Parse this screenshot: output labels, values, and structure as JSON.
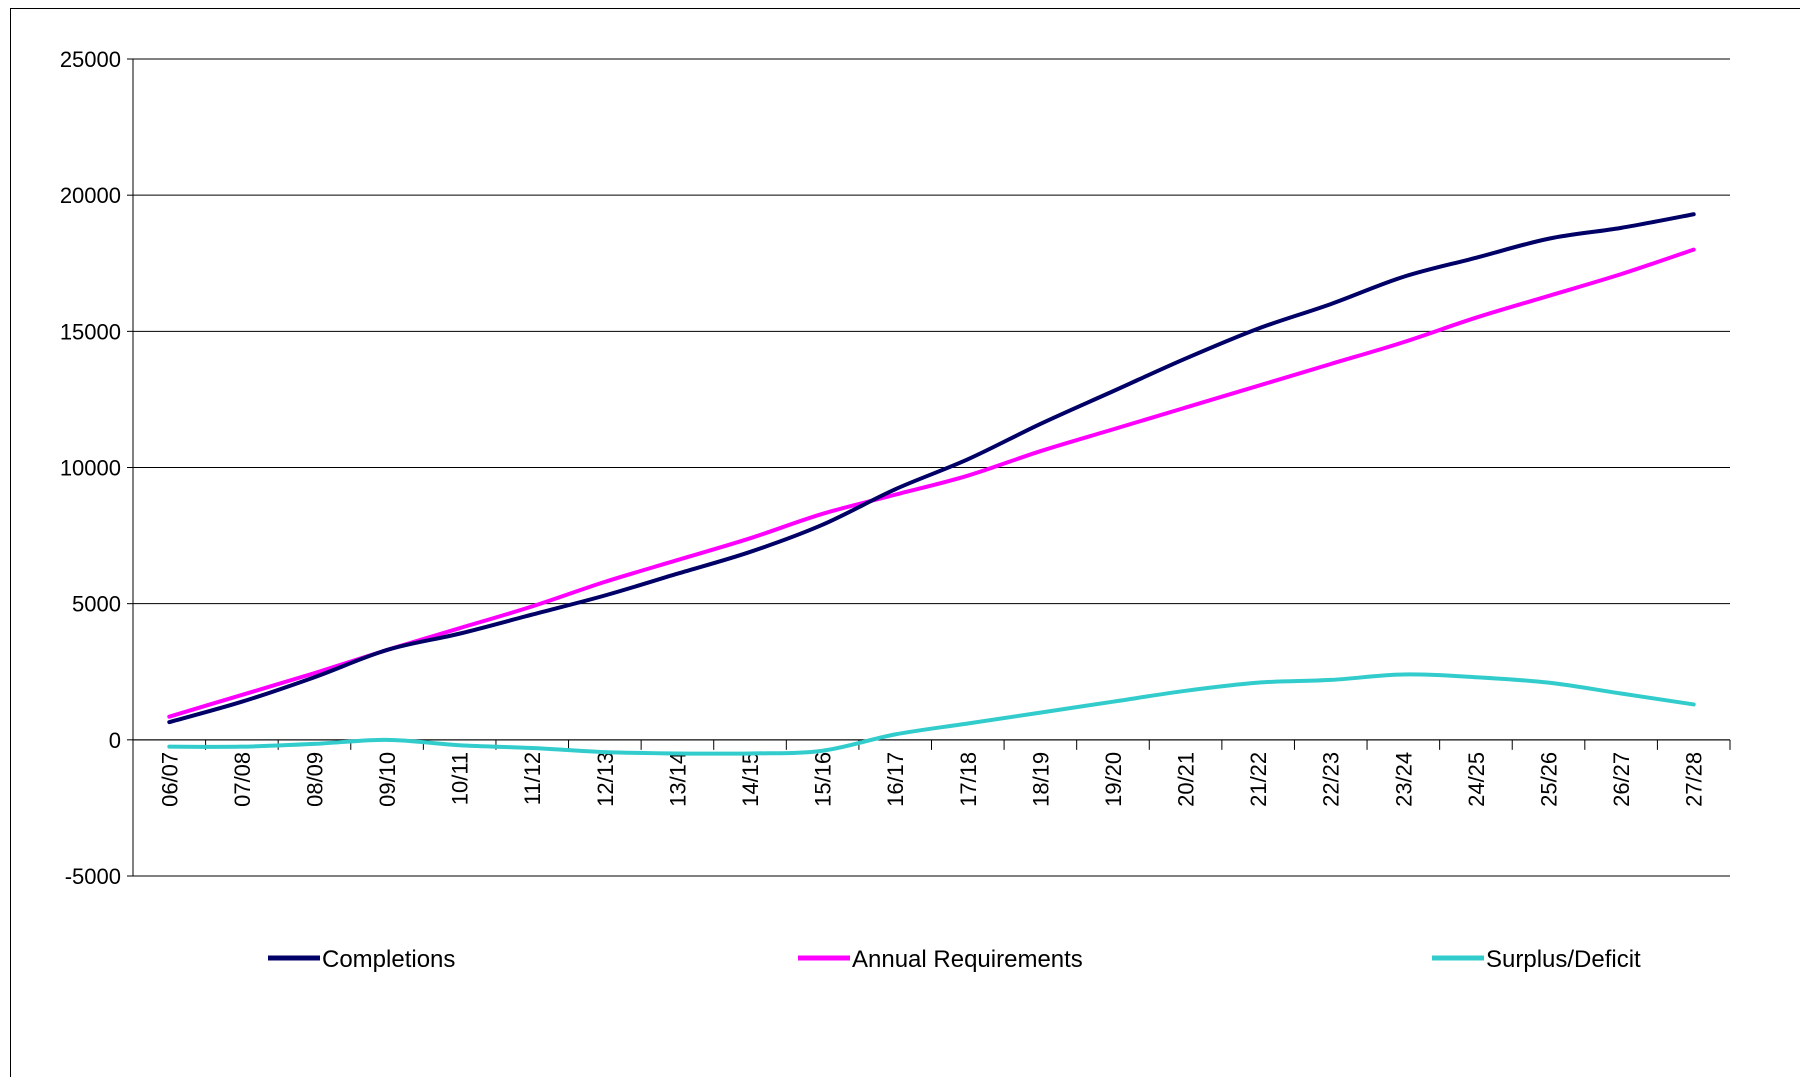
{
  "chart_data": {
    "type": "line",
    "title": "",
    "xlabel": "",
    "ylabel": "",
    "categories": [
      "06/07",
      "07/08",
      "08/09",
      "09/10",
      "10/11",
      "11/12",
      "12/13",
      "13/14",
      "14/15",
      "15/16",
      "16/17",
      "17/18",
      "18/19",
      "19/20",
      "20/21",
      "21/22",
      "22/23",
      "23/24",
      "24/25",
      "25/26",
      "26/27",
      "27/28"
    ],
    "yticks": [
      -5000,
      0,
      5000,
      10000,
      15000,
      20000,
      25000
    ],
    "ylim": [
      -5000,
      25000
    ],
    "grid": true,
    "legend_position": "bottom",
    "series": [
      {
        "name": "Completions",
        "color": "#000066",
        "values": [
          650,
          1400,
          2300,
          3300,
          3900,
          4600,
          5300,
          6100,
          6900,
          7900,
          9200,
          10300,
          11600,
          12800,
          14000,
          15100,
          16000,
          17000,
          17700,
          18400,
          18800,
          19300
        ]
      },
      {
        "name": "Annual Requirements",
        "color": "#ff00ff",
        "values": [
          850,
          1650,
          2450,
          3300,
          4100,
          4900,
          5800,
          6600,
          7400,
          8300,
          9000,
          9700,
          10600,
          11400,
          12200,
          13000,
          13800,
          14600,
          15500,
          16300,
          17100,
          18000
        ]
      },
      {
        "name": "Surplus/Deficit",
        "color": "#33cccc",
        "values": [
          -250,
          -250,
          -150,
          0,
          -200,
          -300,
          -450,
          -500,
          -500,
          -400,
          200,
          600,
          1000,
          1400,
          1800,
          2100,
          2200,
          2400,
          2300,
          2100,
          1700,
          1300
        ]
      }
    ]
  }
}
